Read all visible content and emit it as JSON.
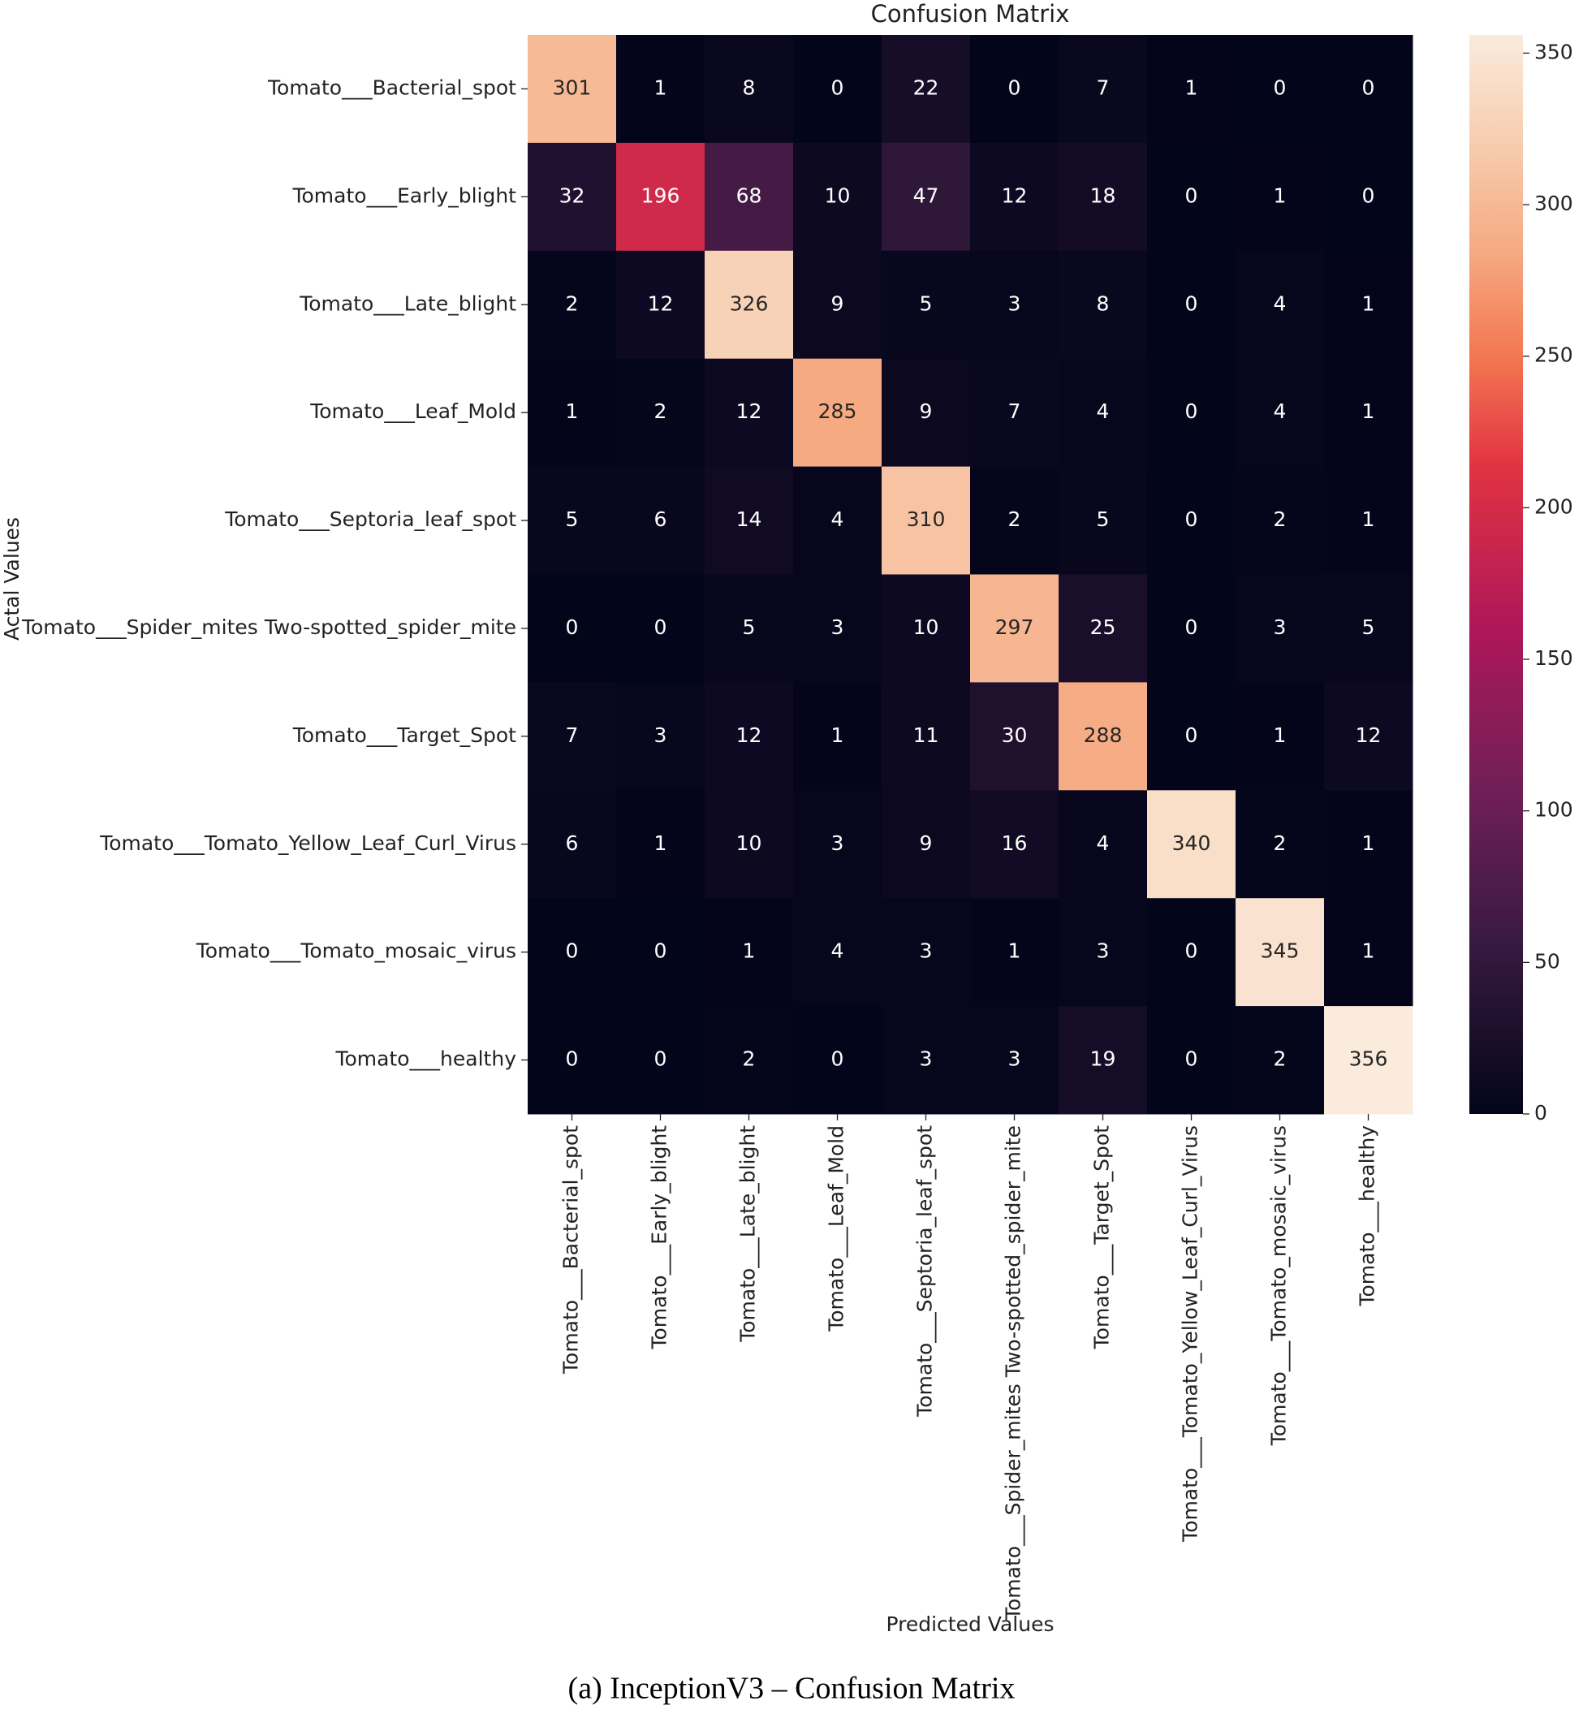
{
  "chart_data": {
    "type": "heatmap",
    "title": "Confusion Matrix",
    "xlabel": "Predicted Values",
    "ylabel": "Actal Values",
    "caption": "(a) InceptionV3 – Confusion Matrix",
    "colormap": "rocket",
    "x_categories": [
      "Tomato___Bacterial_spot",
      "Tomato___Early_blight",
      "Tomato___Late_blight",
      "Tomato___Leaf_Mold",
      "Tomato___Septoria_leaf_spot",
      "Tomato___Spider_mites Two-spotted_spider_mite",
      "Tomato___Target_Spot",
      "Tomato___Tomato_Yellow_Leaf_Curl_Virus",
      "Tomato___Tomato_mosaic_virus",
      "Tomato___healthy"
    ],
    "y_categories": [
      "Tomato___Bacterial_spot",
      "Tomato___Early_blight",
      "Tomato___Late_blight",
      "Tomato___Leaf_Mold",
      "Tomato___Septoria_leaf_spot",
      "Tomato___Spider_mites Two-spotted_spider_mite",
      "Tomato___Target_Spot",
      "Tomato___Tomato_Yellow_Leaf_Curl_Virus",
      "Tomato___Tomato_mosaic_virus",
      "Tomato___healthy"
    ],
    "values": [
      [
        301,
        1,
        8,
        0,
        22,
        0,
        7,
        1,
        0,
        0
      ],
      [
        32,
        196,
        68,
        10,
        47,
        12,
        18,
        0,
        1,
        0
      ],
      [
        2,
        12,
        326,
        9,
        5,
        3,
        8,
        0,
        4,
        1
      ],
      [
        1,
        2,
        12,
        285,
        9,
        7,
        4,
        0,
        4,
        1
      ],
      [
        5,
        6,
        14,
        4,
        310,
        2,
        5,
        0,
        2,
        1
      ],
      [
        0,
        0,
        5,
        3,
        10,
        297,
        25,
        0,
        3,
        5
      ],
      [
        7,
        3,
        12,
        1,
        11,
        30,
        288,
        0,
        1,
        12
      ],
      [
        6,
        1,
        10,
        3,
        9,
        16,
        4,
        340,
        2,
        1
      ],
      [
        0,
        0,
        1,
        4,
        3,
        1,
        3,
        0,
        345,
        1
      ],
      [
        0,
        0,
        2,
        0,
        3,
        3,
        19,
        0,
        2,
        356
      ]
    ],
    "clim": [
      0,
      356
    ],
    "cticks": [
      0,
      50,
      100,
      150,
      200,
      250,
      300,
      350
    ]
  }
}
